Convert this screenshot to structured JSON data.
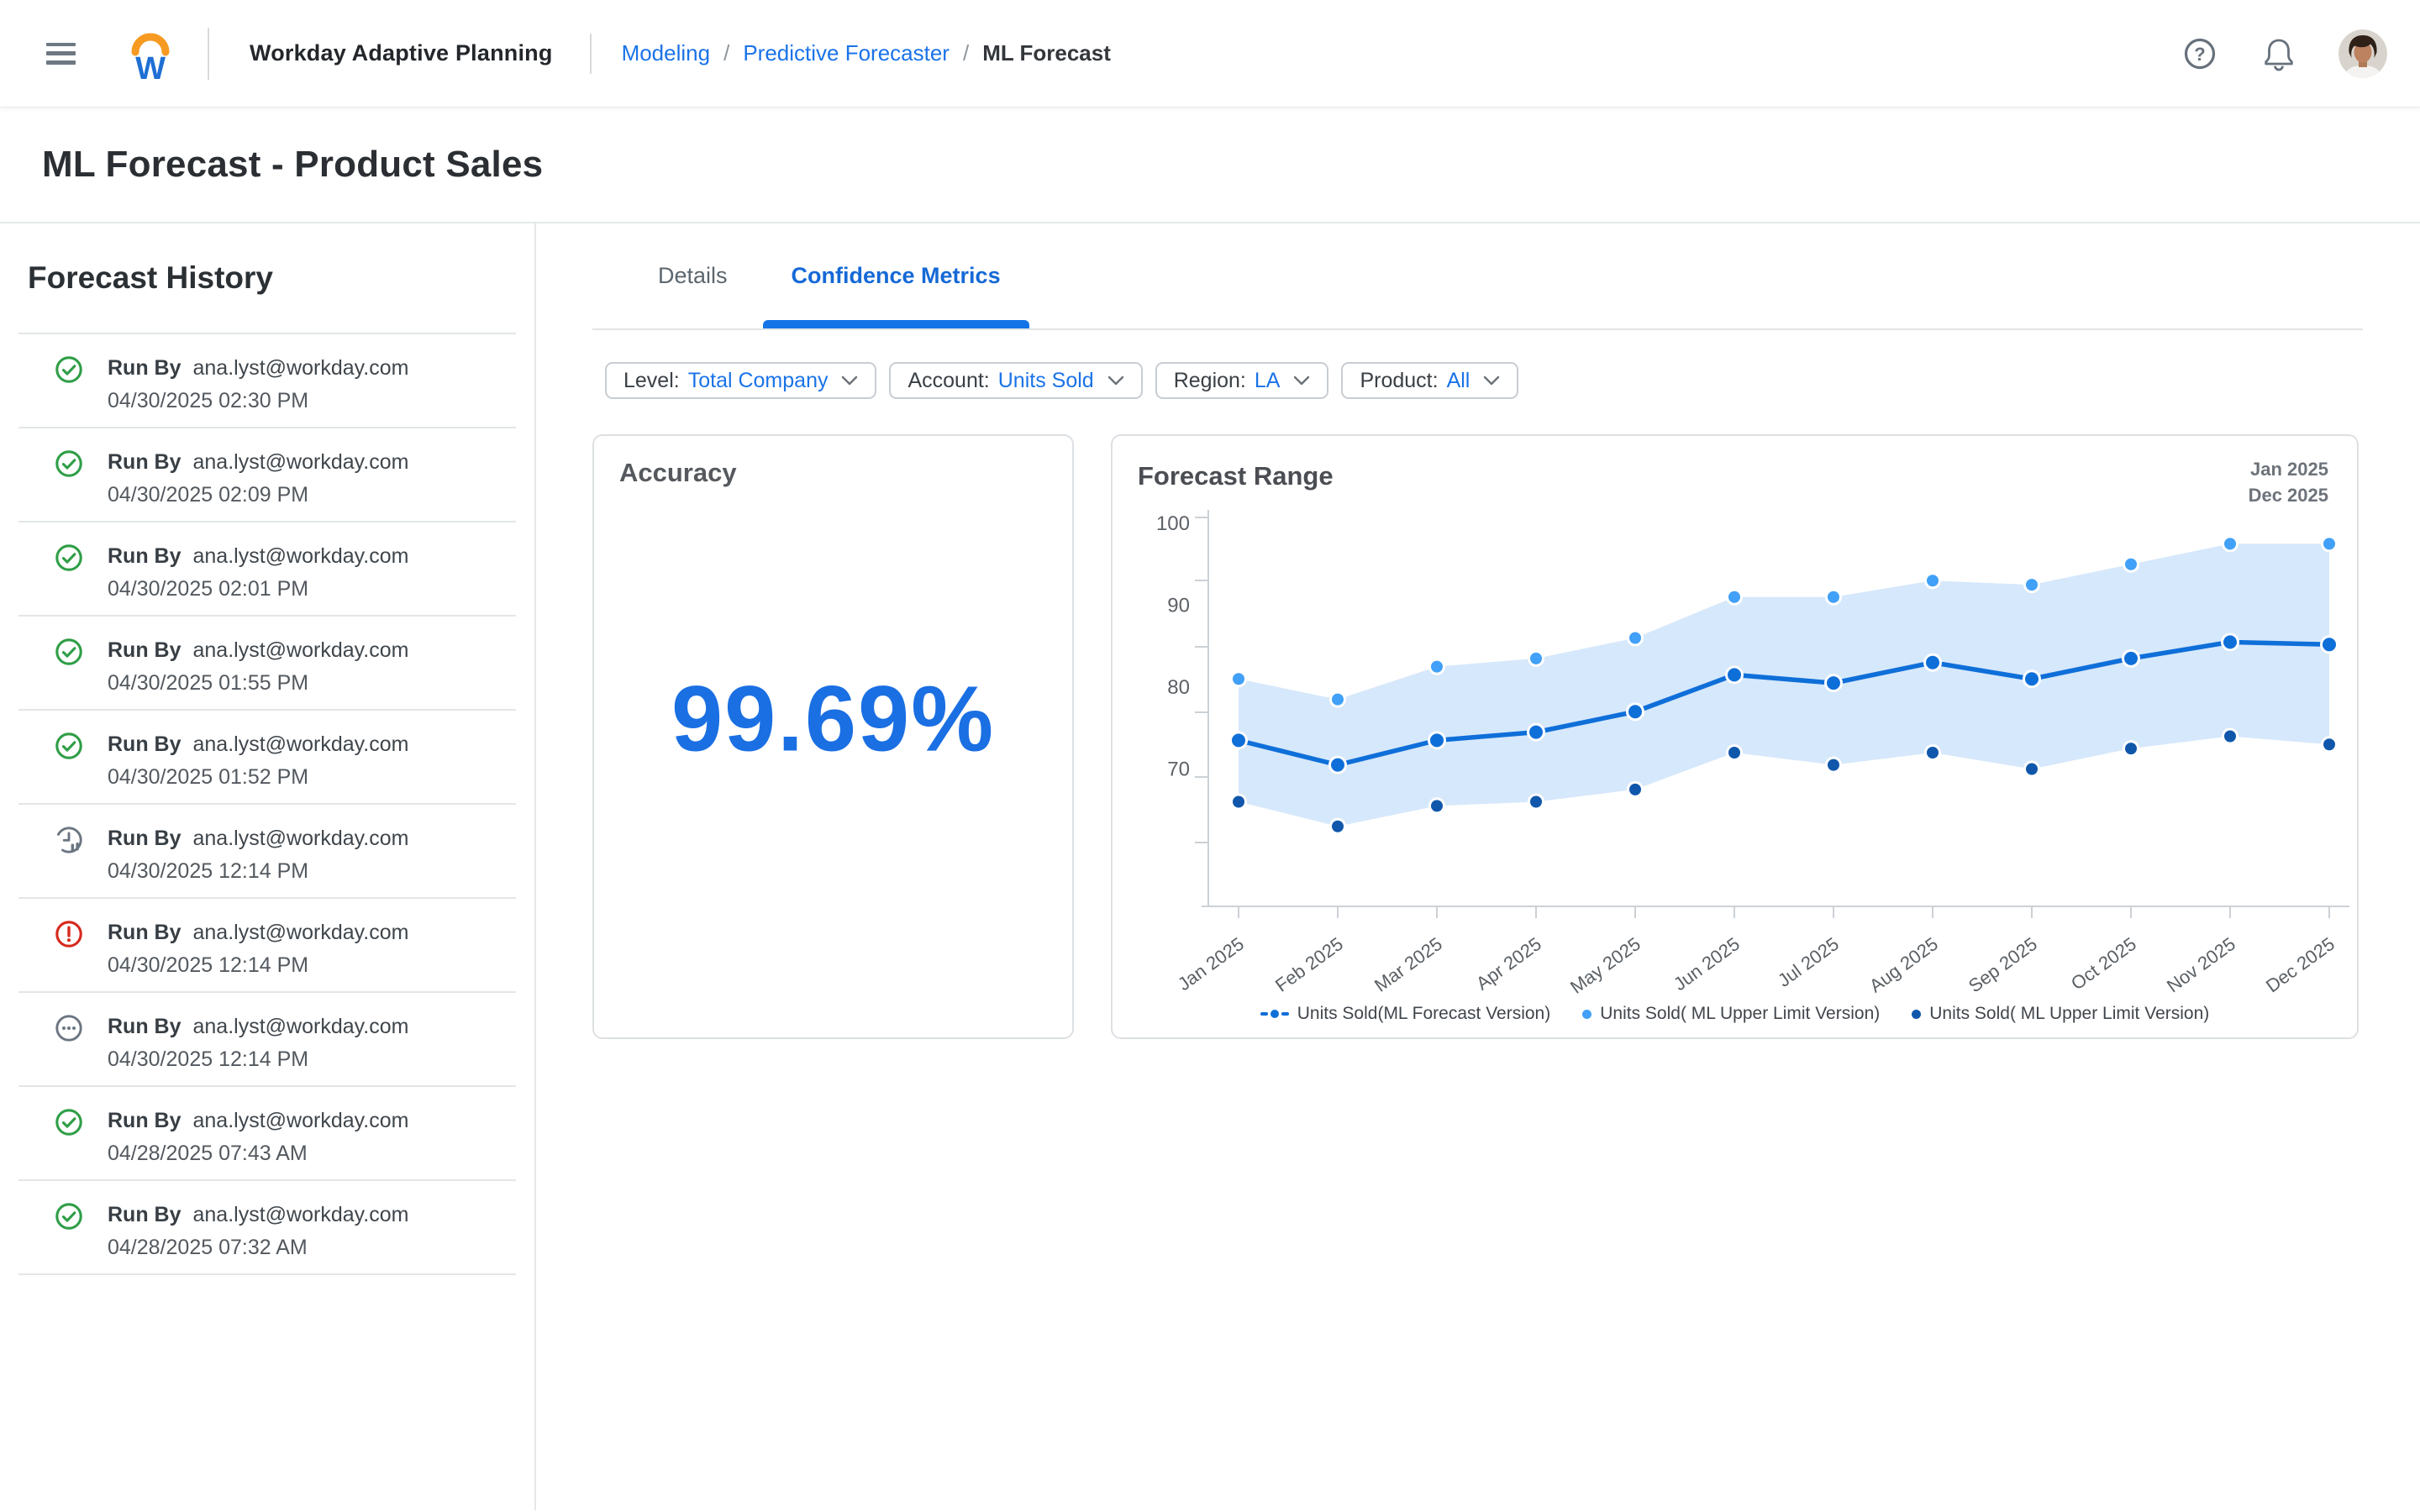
{
  "header": {
    "app_title": "Workday Adaptive Planning",
    "separator": "/",
    "breadcrumbs": [
      {
        "label": "Modeling",
        "type": "link"
      },
      {
        "label": "Predictive Forecaster",
        "type": "link"
      },
      {
        "label": "ML Forecast",
        "type": "current"
      }
    ]
  },
  "page_title": "ML Forecast - Product Sales",
  "sidebar": {
    "title": "Forecast History",
    "runs": [
      {
        "status": "success",
        "label": "Run By",
        "user": "ana.lyst@workday.com",
        "timestamp": "04/30/2025 02:30 PM"
      },
      {
        "status": "success",
        "label": "Run By",
        "user": "ana.lyst@workday.com",
        "timestamp": "04/30/2025 02:09 PM"
      },
      {
        "status": "success",
        "label": "Run By",
        "user": "ana.lyst@workday.com",
        "timestamp": "04/30/2025 02:01 PM"
      },
      {
        "status": "success",
        "label": "Run By",
        "user": "ana.lyst@workday.com",
        "timestamp": "04/30/2025 01:55 PM"
      },
      {
        "status": "success",
        "label": "Run By",
        "user": "ana.lyst@workday.com",
        "timestamp": "04/30/2025 01:52 PM"
      },
      {
        "status": "pending",
        "label": "Run By",
        "user": "ana.lyst@workday.com",
        "timestamp": "04/30/2025 12:14 PM"
      },
      {
        "status": "error",
        "label": "Run By",
        "user": "ana.lyst@workday.com",
        "timestamp": "04/30/2025 12:14 PM"
      },
      {
        "status": "running",
        "label": "Run By",
        "user": "ana.lyst@workday.com",
        "timestamp": "04/30/2025 12:14 PM"
      },
      {
        "status": "success",
        "label": "Run By",
        "user": "ana.lyst@workday.com",
        "timestamp": "04/28/2025 07:43 AM"
      },
      {
        "status": "success",
        "label": "Run By",
        "user": "ana.lyst@workday.com",
        "timestamp": "04/28/2025 07:32 AM"
      }
    ]
  },
  "tabs": [
    {
      "label": "Details",
      "active": false
    },
    {
      "label": "Confidence Metrics",
      "active": true
    }
  ],
  "filters": [
    {
      "label": "Level:",
      "value": "Total Company"
    },
    {
      "label": "Account:",
      "value": "Units Sold"
    },
    {
      "label": "Region:",
      "value": "LA"
    },
    {
      "label": "Product:",
      "value": "All"
    }
  ],
  "accuracy_card": {
    "title": "Accuracy",
    "value": "99.69%"
  },
  "chart_card": {
    "title": "Forecast Range",
    "period_start": "Jan 2025",
    "period_end": "Dec 2025"
  },
  "chart_data": {
    "type": "line",
    "title": "Forecast Range",
    "categories": [
      "Jan 2025",
      "Feb 2025",
      "Mar 2025",
      "Apr 2025",
      "May 2025",
      "Jun 2025",
      "Jul 2025",
      "Aug 2025",
      "Sep 2025",
      "Oct 2025",
      "Nov 2025",
      "Dec 2025"
    ],
    "series": [
      {
        "name": "Units Sold(ML Forecast Version)",
        "role": "forecast",
        "color": "#0f6fd9",
        "values": [
          73.5,
          70.5,
          73.5,
          74.5,
          77,
          81.5,
          80.5,
          83,
          81,
          83.5,
          85.5,
          85.2
        ]
      },
      {
        "name": "Units Sold( ML Upper Limit Version)",
        "role": "upper",
        "color": "#41a0f7",
        "values": [
          81,
          78.5,
          82.5,
          83.5,
          86,
          91,
          91,
          93,
          92.5,
          95,
          97.5,
          97.5
        ]
      },
      {
        "name": "Units Sold( ML Upper Limit Version)",
        "role": "lower",
        "color": "#1057ac",
        "values": [
          66,
          63,
          65.5,
          66,
          67.5,
          72,
          70.5,
          72,
          70,
          72.5,
          74,
          73
        ]
      }
    ],
    "band_color": "#d6e8fb",
    "ylim": [
      60,
      100
    ],
    "yticks": [
      70,
      80,
      90,
      100
    ],
    "xlabel": "",
    "ylabel": "",
    "grid": false,
    "legend_position": "bottom"
  },
  "colors": {
    "accent_blue": "#1a73e8",
    "tab_blue": "#1569d6",
    "accuracy_blue": "#1a6fe3",
    "success_green": "#2f9e47",
    "error_red": "#d7281d",
    "neutral_gray": "#6b7681",
    "band_fill": "#d6e8fb"
  }
}
